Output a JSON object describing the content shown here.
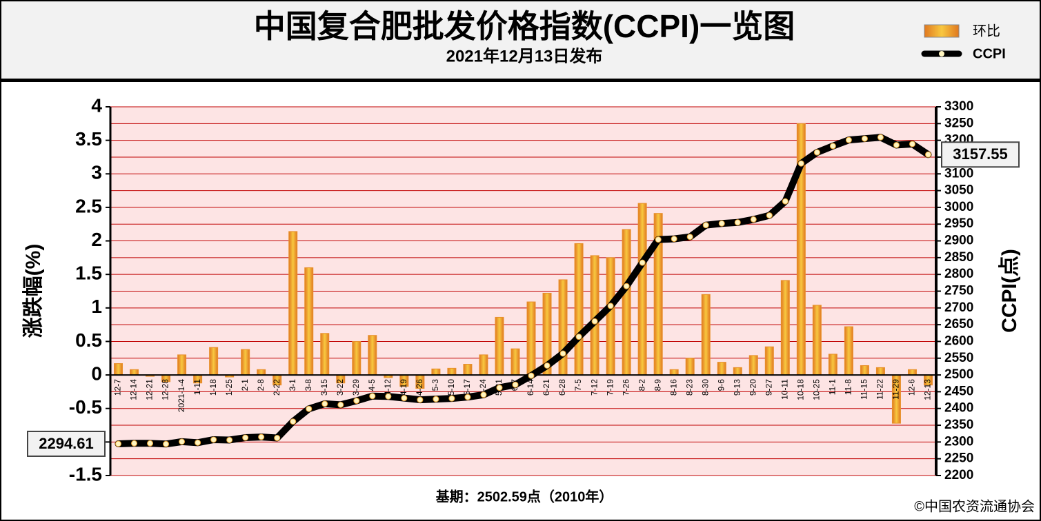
{
  "chart_data": {
    "type": "bar-line",
    "title": "中国复合肥批发价格指数(CCPI)一览图",
    "subtitle": "2021年12月13日发布",
    "y_label": "涨跌幅(%)",
    "y2_label": "CCPI(点)",
    "footnote": "基期：2502.59点（2010年）",
    "source": "©中国农资流通协会",
    "categories": [
      "12-7",
      "12-14",
      "12-21",
      "12-28",
      "2021-1-4",
      "1-11",
      "1-18",
      "1-25",
      "2-1",
      "2-8",
      "2-22",
      "3-1",
      "3-8",
      "3-15",
      "3-22",
      "3-29",
      "4-5",
      "4-12",
      "4-19",
      "4-26",
      "5-3",
      "5-10",
      "5-17",
      "5-24",
      "5-31",
      "6-7",
      "6-14",
      "6-21",
      "6-28",
      "7-5",
      "7-12",
      "7-19",
      "7-26",
      "8-2",
      "8-9",
      "8-16",
      "8-23",
      "8-30",
      "9-6",
      "9-13",
      "9-20",
      "9-27",
      "10-11",
      "10-18",
      "10-25",
      "11-1",
      "11-8",
      "11-15",
      "11-22",
      "11-29",
      "12-6",
      "12-13"
    ],
    "series": [
      {
        "name": "环比",
        "type": "bar",
        "color": "#e8902a",
        "values": [
          0.17,
          0.08,
          -0.02,
          -0.1,
          0.3,
          -0.12,
          0.41,
          -0.03,
          0.38,
          0.08,
          -0.15,
          2.14,
          1.6,
          0.62,
          -0.12,
          0.5,
          0.59,
          -0.04,
          -0.17,
          -0.2,
          0.09,
          0.1,
          0.16,
          0.3,
          0.86,
          0.39,
          1.09,
          1.22,
          1.42,
          1.96,
          1.78,
          1.75,
          2.17,
          2.56,
          2.41,
          0.08,
          0.25,
          1.2,
          0.19,
          0.11,
          0.29,
          0.42,
          1.41,
          3.75,
          1.04,
          0.31,
          0.72,
          0.14,
          0.11,
          -0.72,
          0.08,
          -0.15
        ]
      },
      {
        "name": "CCPI",
        "type": "line",
        "axis": "y2",
        "color": "#000000",
        "values": [
          2294.61,
          2296,
          2296,
          2294,
          2301,
          2298,
          2307,
          2306,
          2313,
          2315,
          2312,
          2361,
          2399,
          2414,
          2411,
          2423,
          2437,
          2436,
          2431,
          2426,
          2428,
          2430,
          2434,
          2441,
          2462,
          2471,
          2498,
          2528,
          2564,
          2614,
          2660,
          2706,
          2765,
          2835,
          2904,
          2906,
          2912,
          2947,
          2952,
          2955,
          2964,
          2976,
          3018,
          3131,
          3164,
          3183,
          3201,
          3205,
          3209,
          3186,
          3189,
          3157.55
        ],
        "value_labels": [
          "2294.61",
          null,
          null,
          null,
          null,
          null,
          null,
          null,
          null,
          null,
          null,
          null,
          null,
          null,
          null,
          null,
          null,
          null,
          null,
          null,
          null,
          null,
          null,
          null,
          null,
          null,
          null,
          null,
          null,
          null,
          null,
          null,
          null,
          null,
          null,
          null,
          null,
          null,
          null,
          null,
          null,
          null,
          null,
          null,
          null,
          null,
          null,
          null,
          null,
          null,
          null,
          "3157.55"
        ]
      }
    ],
    "ylim": [
      -1.5,
      4
    ],
    "yticks": [
      -1.5,
      -1,
      -0.5,
      0,
      0.5,
      1,
      1.5,
      2,
      2.5,
      3,
      3.5,
      4
    ],
    "y2lim": [
      2200,
      3300
    ],
    "y2ticks": [
      2200,
      2250,
      2300,
      2350,
      2400,
      2450,
      2500,
      2550,
      2600,
      2650,
      2700,
      2750,
      2800,
      2850,
      2900,
      2950,
      3000,
      3050,
      3100,
      3150,
      3200,
      3250,
      3300
    ],
    "grid": true,
    "grid_color": "#c00000"
  }
}
